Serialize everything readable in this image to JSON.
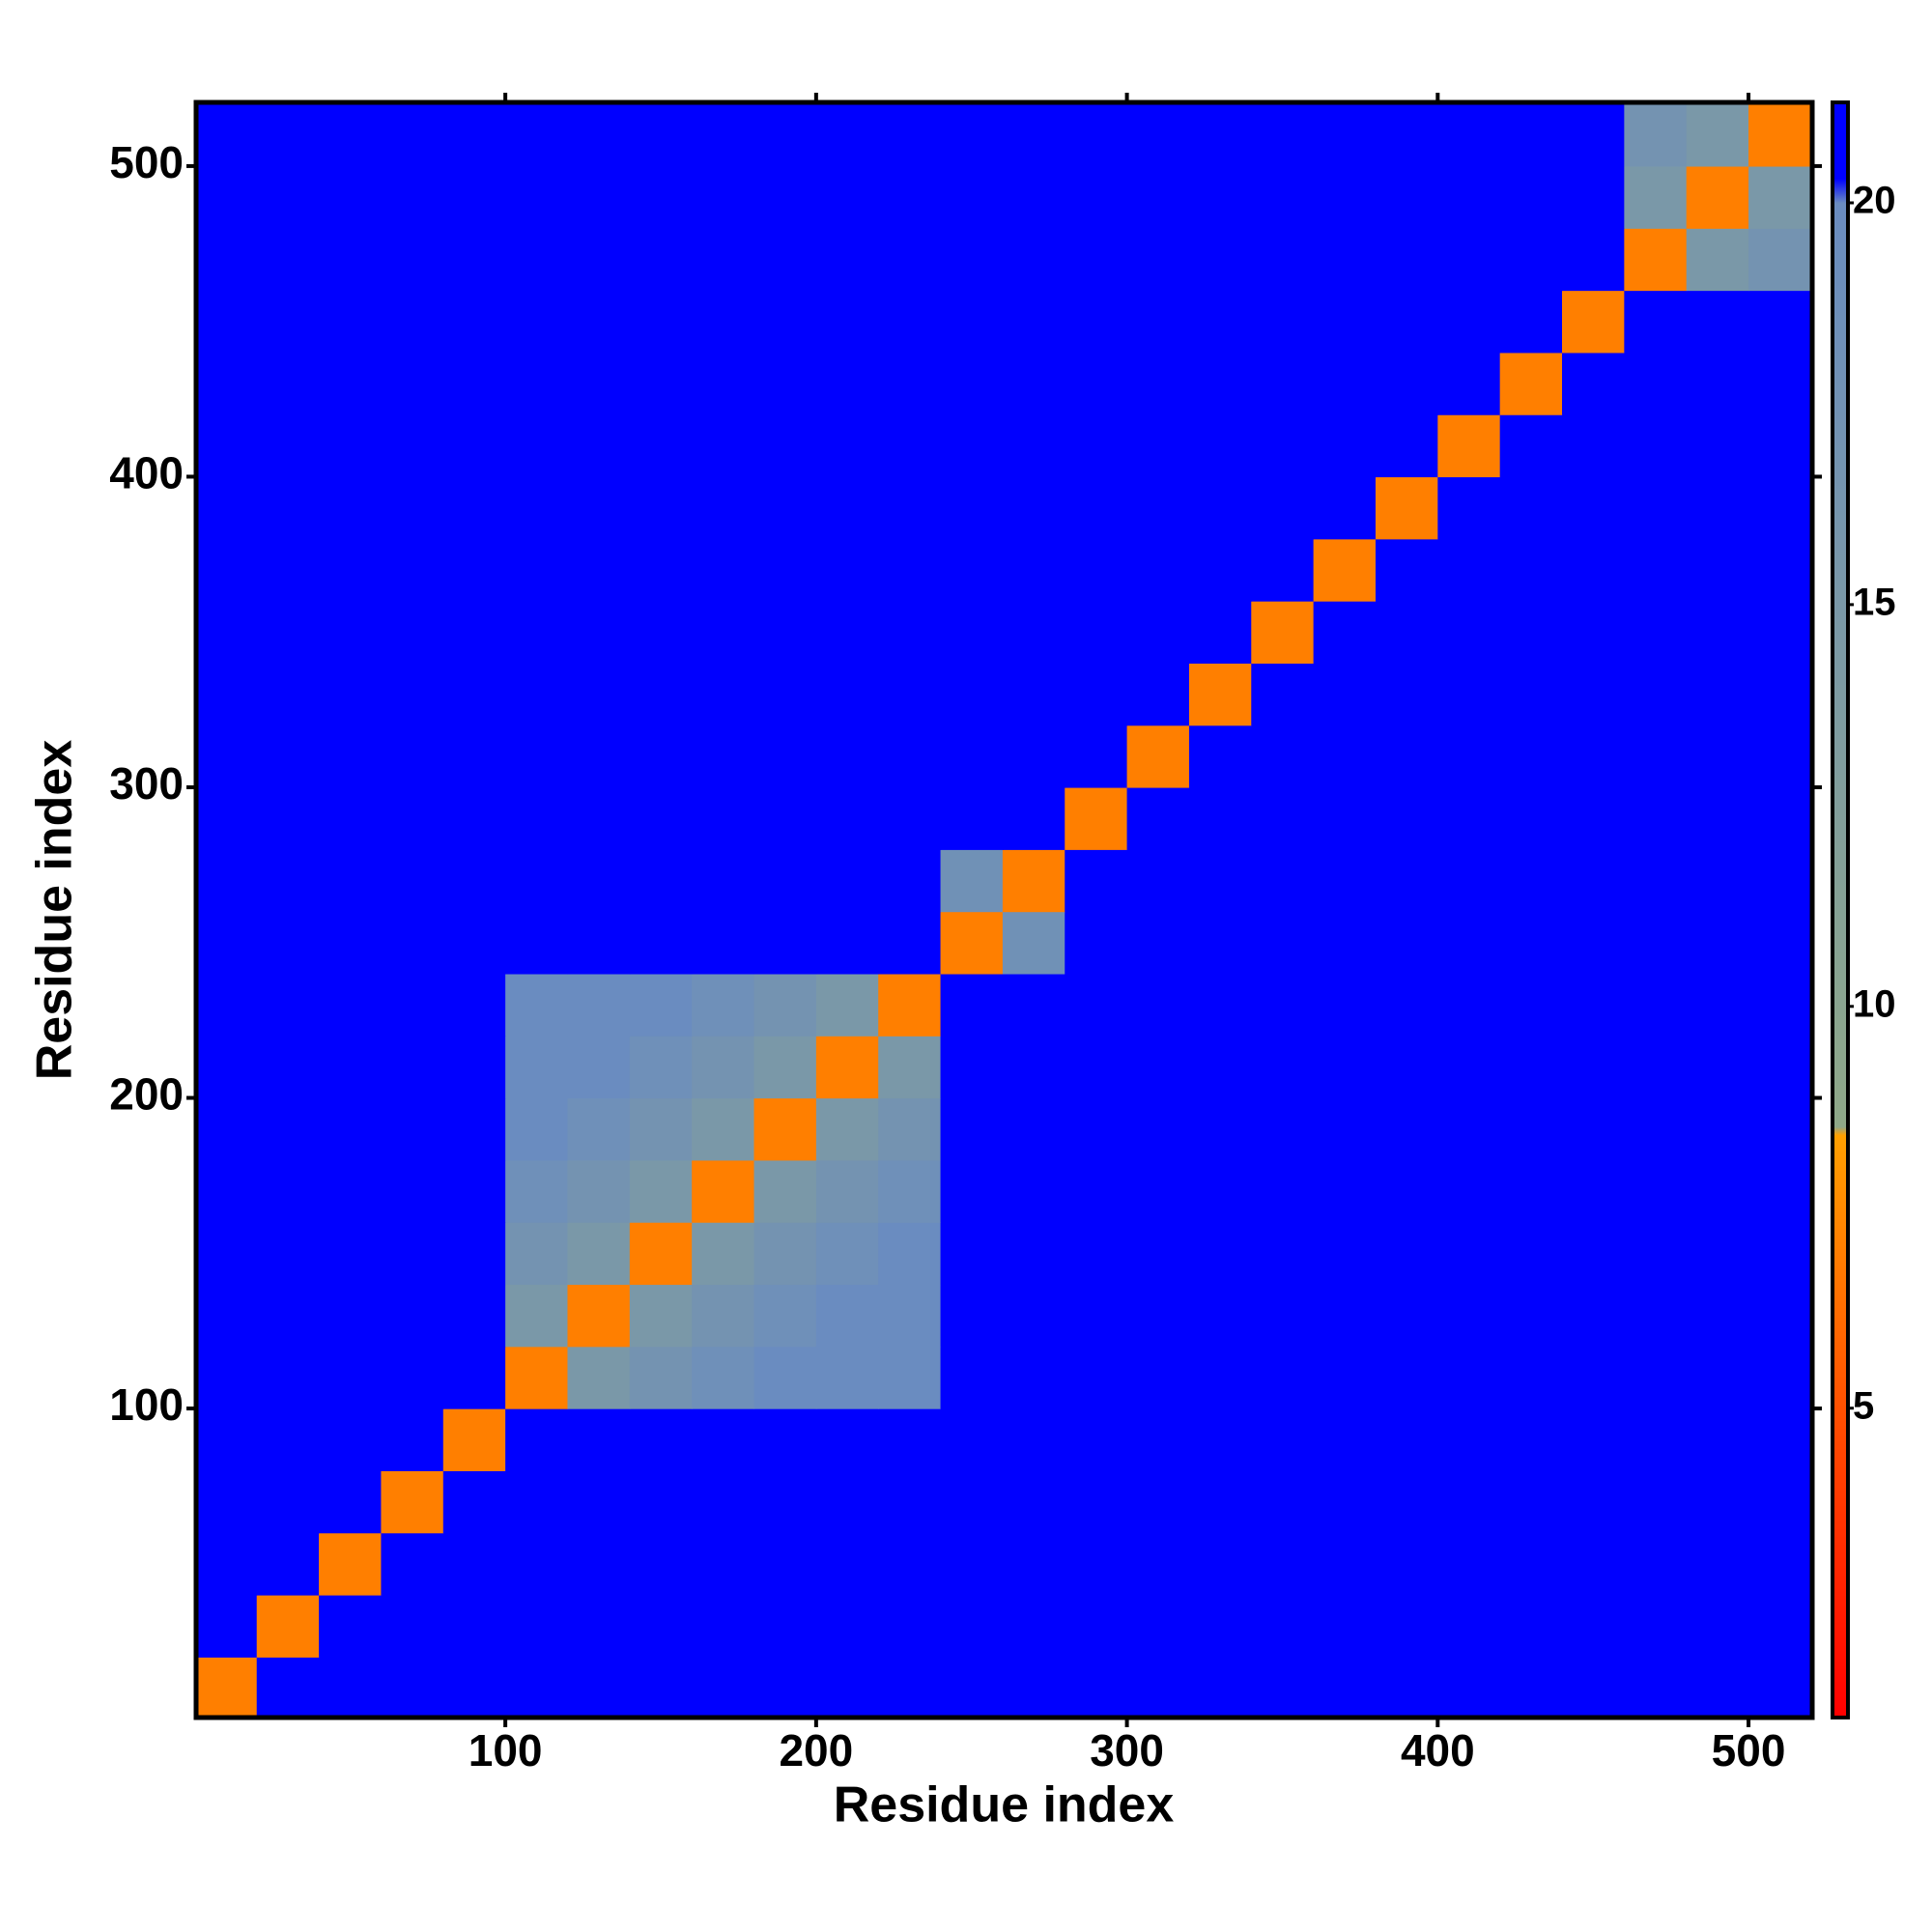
{
  "chart_data": {
    "type": "heatmap",
    "x_label": "Residue index",
    "y_label": "Residue index",
    "xlim": [
      0.5,
      520.5
    ],
    "ylim": [
      0.5,
      520.5
    ],
    "xticks": [
      100,
      200,
      300,
      400,
      500
    ],
    "yticks": [
      100,
      200,
      300,
      400,
      500
    ],
    "bins": [
      0,
      20,
      40,
      60,
      80,
      100,
      120,
      140,
      160,
      180,
      200,
      220,
      240,
      260,
      280,
      300,
      320,
      340,
      360,
      380,
      400,
      420,
      440,
      460,
      480,
      500,
      520
    ],
    "z": [
      [
        7,
        21,
        21,
        21,
        21,
        21,
        21,
        21,
        21,
        21,
        21,
        21,
        21,
        21,
        21,
        21,
        21,
        21,
        21,
        21,
        21,
        21,
        21,
        21,
        21,
        21
      ],
      [
        21,
        7,
        21,
        21,
        21,
        21,
        21,
        21,
        21,
        21,
        21,
        21,
        21,
        21,
        21,
        21,
        21,
        21,
        21,
        21,
        21,
        21,
        21,
        21,
        21,
        21
      ],
      [
        21,
        21,
        7,
        21,
        21,
        21,
        21,
        21,
        21,
        21,
        21,
        21,
        21,
        21,
        21,
        21,
        21,
        21,
        21,
        21,
        21,
        21,
        21,
        21,
        21,
        21
      ],
      [
        21,
        21,
        21,
        7,
        21,
        21,
        21,
        21,
        21,
        21,
        21,
        21,
        21,
        21,
        21,
        21,
        21,
        21,
        21,
        21,
        21,
        21,
        21,
        21,
        21,
        21
      ],
      [
        21,
        21,
        21,
        21,
        7,
        21,
        21,
        21,
        21,
        21,
        21,
        21,
        21,
        21,
        21,
        21,
        21,
        21,
        21,
        21,
        21,
        21,
        21,
        21,
        21,
        21
      ],
      [
        21,
        21,
        21,
        21,
        21,
        7,
        15,
        17,
        18.5,
        20,
        20,
        20,
        21,
        21,
        21,
        21,
        21,
        20.3,
        20.3,
        21,
        21,
        21,
        21,
        21,
        21,
        21
      ],
      [
        21,
        21,
        21,
        21,
        21,
        15,
        7,
        15,
        17,
        18.5,
        20,
        20,
        21,
        21,
        21,
        21,
        21,
        20.3,
        20.3,
        21,
        21,
        21,
        21,
        21,
        21,
        21
      ],
      [
        21,
        21,
        21,
        21,
        21,
        17,
        15,
        7,
        15,
        17,
        18.5,
        20,
        21,
        21,
        21,
        21,
        21,
        21,
        21,
        21,
        21,
        21,
        21,
        21,
        21,
        21
      ],
      [
        21,
        21,
        21,
        21,
        21,
        18.5,
        17,
        15,
        7,
        15,
        17,
        18.5,
        21,
        21,
        21,
        21,
        21,
        21,
        21,
        21,
        21,
        21,
        21,
        21,
        21,
        21
      ],
      [
        21,
        21,
        21,
        21,
        21,
        20,
        18.5,
        17,
        15,
        7,
        15,
        17,
        21,
        21,
        21,
        21,
        21,
        21,
        21,
        21,
        21,
        20.5,
        21,
        21,
        21,
        21
      ],
      [
        21,
        21,
        21,
        21,
        21,
        20,
        20,
        18.5,
        17,
        15,
        7,
        15,
        21,
        21,
        21,
        21,
        21,
        21,
        21,
        21,
        21,
        21,
        21,
        21,
        20.3,
        21
      ],
      [
        21,
        21,
        21,
        21,
        21,
        20,
        20,
        20,
        18.5,
        17,
        15,
        7,
        21,
        21,
        21,
        21,
        21,
        21,
        21,
        21,
        21,
        21,
        21,
        21,
        20.3,
        20.3
      ],
      [
        21,
        21,
        21,
        21,
        21,
        21,
        21,
        21,
        21,
        21,
        21,
        21,
        7,
        18,
        21,
        21,
        21,
        21,
        21,
        21,
        21,
        21,
        21,
        21,
        21,
        21
      ],
      [
        21,
        21,
        21,
        21,
        21,
        21,
        21,
        21,
        21,
        21,
        21,
        21,
        18,
        7,
        21,
        21,
        21,
        21,
        21,
        21,
        21,
        21,
        21,
        21,
        21,
        21
      ],
      [
        21,
        21,
        21,
        21,
        21,
        21,
        21,
        21,
        21,
        21,
        21,
        21,
        21,
        21,
        7,
        21,
        21,
        21,
        21,
        21,
        21,
        21,
        21,
        21,
        21,
        21
      ],
      [
        21,
        21,
        21,
        21,
        21,
        21,
        21,
        21,
        21,
        21,
        21,
        21,
        21,
        21,
        21,
        7,
        21,
        21,
        21,
        21,
        21,
        21,
        21,
        21,
        21,
        21
      ],
      [
        21,
        21,
        21,
        21,
        21,
        21,
        21,
        21,
        21,
        21,
        21,
        21,
        21,
        21,
        21,
        21,
        7,
        21,
        21,
        21,
        21,
        21,
        21,
        21,
        21,
        21
      ],
      [
        21,
        21,
        21,
        21,
        21,
        20.3,
        20.3,
        21,
        21,
        21,
        21,
        21,
        21,
        21,
        21,
        21,
        21,
        7,
        21,
        21,
        21,
        21,
        21,
        21,
        21,
        21
      ],
      [
        21,
        21,
        21,
        21,
        21,
        20.3,
        20.3,
        21,
        21,
        21,
        21,
        21,
        21,
        21,
        21,
        21,
        21,
        21,
        7,
        21,
        21,
        21,
        21,
        21,
        21,
        21
      ],
      [
        21,
        21,
        21,
        21,
        21,
        21,
        21,
        21,
        21,
        21,
        21,
        21,
        21,
        21,
        21,
        21,
        21,
        21,
        21,
        7,
        21,
        21,
        21,
        21,
        21,
        21
      ],
      [
        21,
        21,
        21,
        21,
        21,
        21,
        21,
        21,
        21,
        21,
        21,
        21,
        21,
        21,
        21,
        21,
        21,
        21,
        21,
        21,
        7,
        21,
        21,
        21,
        21,
        21
      ],
      [
        21,
        21,
        21,
        21,
        21,
        21,
        21,
        21,
        21,
        20.5,
        21,
        21,
        21,
        21,
        21,
        21,
        21,
        21,
        21,
        21,
        21,
        7,
        21,
        21,
        21,
        21
      ],
      [
        21,
        21,
        21,
        21,
        21,
        21,
        21,
        21,
        21,
        21,
        21,
        21,
        21,
        21,
        21,
        21,
        21,
        21,
        21,
        21,
        21,
        21,
        7,
        21,
        21,
        21
      ],
      [
        21,
        21,
        21,
        21,
        21,
        21,
        21,
        21,
        21,
        21,
        21,
        21,
        21,
        21,
        21,
        21,
        21,
        21,
        21,
        21,
        21,
        21,
        21,
        7,
        15,
        17
      ],
      [
        21,
        21,
        21,
        21,
        21,
        21,
        21,
        21,
        21,
        21,
        20.3,
        20.3,
        21,
        21,
        21,
        21,
        21,
        21,
        21,
        21,
        21,
        21,
        21,
        15,
        7,
        15
      ],
      [
        21,
        21,
        21,
        21,
        21,
        21,
        21,
        21,
        21,
        21,
        21,
        20.3,
        21,
        21,
        21,
        21,
        21,
        21,
        21,
        21,
        21,
        21,
        21,
        17,
        15,
        7
      ]
    ],
    "clim": [
      1.15,
      21.25
    ],
    "cticks": [
      5,
      10,
      15,
      20
    ],
    "colorscale": [
      {
        "value": 1.15,
        "color": "#ff0000"
      },
      {
        "value": 5,
        "color": "#ff5000"
      },
      {
        "value": 8.4,
        "color": "#ffa000"
      },
      {
        "value": 8.5,
        "color": "#8fa888"
      },
      {
        "value": 20,
        "color": "#6a8cc0"
      },
      {
        "value": 20.3,
        "color": "#0000ff"
      },
      {
        "value": 21.25,
        "color": "#0000ff"
      }
    ]
  }
}
